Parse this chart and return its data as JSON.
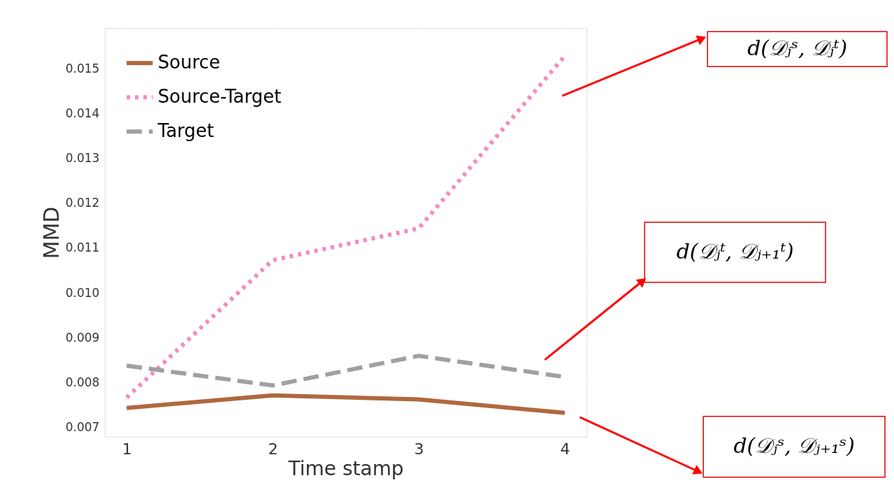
{
  "chart_data": {
    "type": "line",
    "xlabel": "Time stamp",
    "ylabel": "MMD",
    "x": [
      1,
      2,
      3,
      4
    ],
    "series": [
      {
        "name": "Source",
        "color": "#b0683f",
        "line_style": "solid",
        "values": [
          0.00744,
          0.00772,
          0.00763,
          0.00733
        ]
      },
      {
        "name": "Source-Target",
        "color": "#f28cc0",
        "line_style": "dotted",
        "values": [
          0.00767,
          0.01073,
          0.01144,
          0.01528
        ]
      },
      {
        "name": "Target",
        "color": "#a0a0a0",
        "line_style": "dashed",
        "values": [
          0.00838,
          0.00794,
          0.0086,
          0.00813
        ]
      }
    ],
    "xlim": [
      0.85,
      4.15
    ],
    "ylim": [
      0.0068,
      0.0159
    ],
    "xticks": [
      1,
      2,
      3,
      4
    ],
    "yticks": [
      {
        "value": 0.007,
        "label": "0.007"
      },
      {
        "value": 0.008,
        "label": "0.008"
      },
      {
        "value": 0.009,
        "label": "0.009"
      },
      {
        "value": 0.01,
        "label": "0.010"
      },
      {
        "value": 0.011,
        "label": "0.011"
      },
      {
        "value": 0.012,
        "label": "0.012"
      },
      {
        "value": 0.013,
        "label": "0.013"
      },
      {
        "value": 0.014,
        "label": "0.014"
      },
      {
        "value": 0.015,
        "label": "0.015"
      }
    ],
    "grid": true,
    "legend": "top left",
    "marker": "none",
    "annotations": [
      "d(𝒟ⱼˢ, 𝒟ⱼᵗ)",
      "d(𝒟ⱼᵗ, 𝒟ⱼ₊₁ᵗ)",
      "d(𝒟ⱼˢ, 𝒟ⱼ₊₁ˢ)"
    ]
  }
}
